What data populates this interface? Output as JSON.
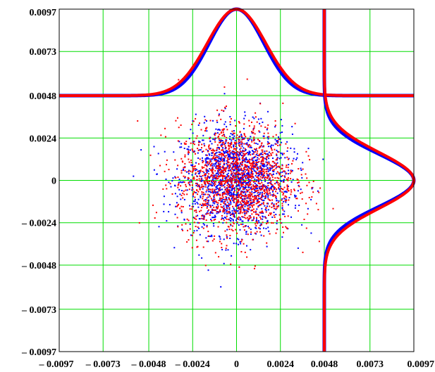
{
  "chart_data": {
    "type": "scatter",
    "title": "",
    "xlabel": "",
    "ylabel": "",
    "xlim": [
      -0.0097,
      0.0097
    ],
    "ylim": [
      -0.0097,
      0.0097
    ],
    "grid": true,
    "x_ticks": [
      -0.0097,
      -0.0073,
      -0.0048,
      -0.0024,
      0,
      0.0024,
      0.0048,
      0.0073,
      0.0097
    ],
    "y_ticks": [
      -0.0097,
      -0.0073,
      -0.0048,
      -0.0024,
      0,
      0.0024,
      0.0048,
      0.0073,
      0.0097
    ],
    "x_tick_labels": [
      "– 0.0097",
      "– 0.0073",
      "– 0.0048",
      "– 0.0024",
      "0",
      "0.0024",
      "0.0048",
      "0.0073",
      "0.0097"
    ],
    "y_tick_labels": [
      "– 0.0097",
      "– 0.0073",
      "– 0.0048",
      "– 0.0024",
      "0",
      "0.0024",
      "0.0048",
      "0.0073",
      "0.0097"
    ],
    "series": [
      {
        "kind": "scatter",
        "color": "#ff0000",
        "point_count": 1500,
        "distribution": "normal",
        "mean_x": 0,
        "std_x": 0.0016,
        "mean_y": 0,
        "std_y": 0.0016
      },
      {
        "kind": "scatter",
        "color": "#0000ff",
        "point_count": 1500,
        "distribution": "normal",
        "mean_x": 0,
        "std_x": 0.0015,
        "mean_y": 0,
        "std_y": 0.0015
      },
      {
        "kind": "marginal-density-x",
        "color": "#0000ff",
        "baseline_y": 0.0048,
        "peak_y": 0.0097,
        "center": 0,
        "sigma": 0.0015
      },
      {
        "kind": "marginal-density-x",
        "color": "#ff0000",
        "baseline_y": 0.0048,
        "peak_y": 0.0097,
        "center": 0,
        "sigma": 0.0016
      },
      {
        "kind": "marginal-density-y",
        "color": "#0000ff",
        "baseline_x": 0.0048,
        "peak_x": 0.0097,
        "center": 0,
        "sigma": 0.0015
      },
      {
        "kind": "marginal-density-y",
        "color": "#ff0000",
        "baseline_x": 0.0048,
        "peak_x": 0.0097,
        "center": 0,
        "sigma": 0.0016
      }
    ],
    "colors": {
      "grid": "#00dd00",
      "axes": "#000000",
      "red": "#ff0000",
      "blue": "#0000ff"
    }
  }
}
